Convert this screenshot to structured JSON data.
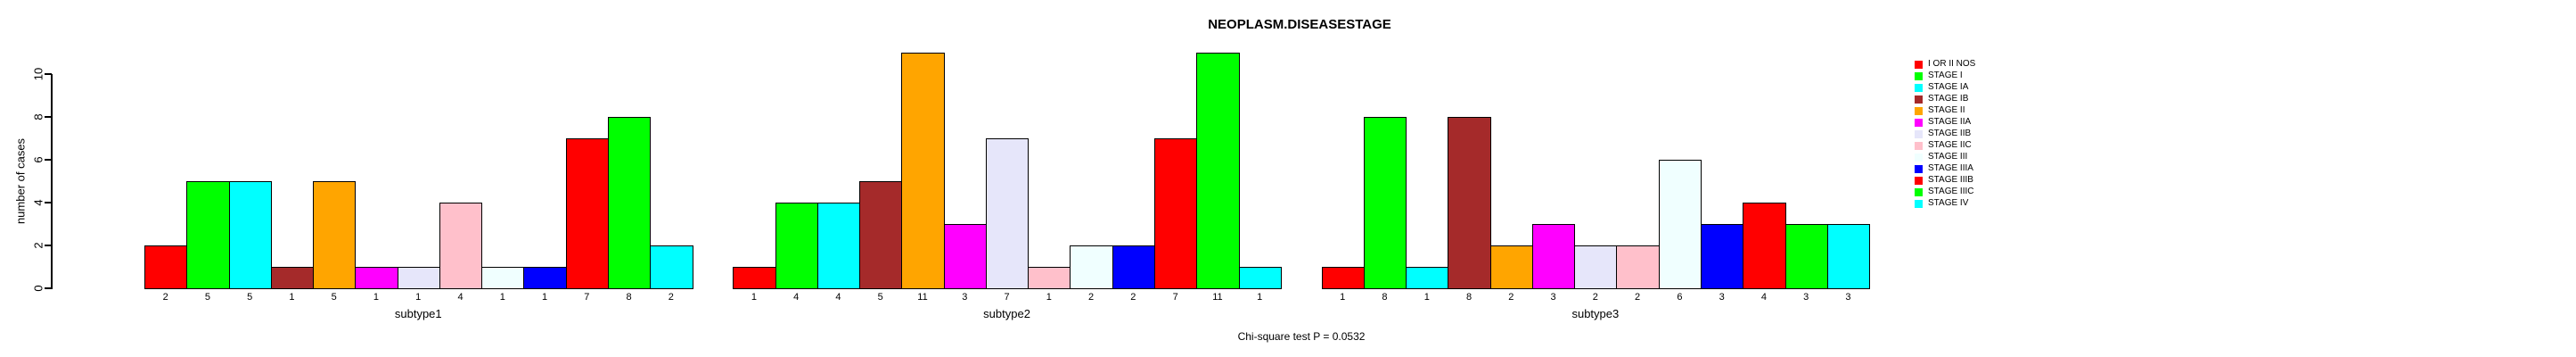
{
  "chart_data": {
    "type": "bar",
    "title": "NEOPLASM.DISEASESTAGE",
    "ylabel": "number of cases",
    "xlabel": "",
    "annotation": "Chi-square test P = 0.0532",
    "categories": [
      "subtype1",
      "subtype2",
      "subtype3"
    ],
    "series": [
      {
        "name": "I OR II NOS",
        "color": "#FF0000",
        "values": [
          2,
          1,
          1
        ]
      },
      {
        "name": "STAGE I",
        "color": "#00FF00",
        "values": [
          5,
          4,
          8
        ]
      },
      {
        "name": "STAGE IA",
        "color": "#00FFFF",
        "values": [
          5,
          4,
          1
        ]
      },
      {
        "name": "STAGE IB",
        "color": "#A52A2A",
        "values": [
          1,
          5,
          8
        ]
      },
      {
        "name": "STAGE II",
        "color": "#FFA500",
        "values": [
          5,
          11,
          2
        ]
      },
      {
        "name": "STAGE IIA",
        "color": "#FF00FF",
        "values": [
          1,
          3,
          3
        ]
      },
      {
        "name": "STAGE IIB",
        "color": "#E6E6FA",
        "values": [
          1,
          7,
          2
        ]
      },
      {
        "name": "STAGE IIC",
        "color": "#FFC0CB",
        "values": [
          4,
          1,
          2
        ]
      },
      {
        "name": "STAGE III",
        "color": "#F0FFFF",
        "values": [
          1,
          2,
          6
        ]
      },
      {
        "name": "STAGE IIIA",
        "color": "#0000FF",
        "values": [
          1,
          2,
          3
        ]
      },
      {
        "name": "STAGE IIIB",
        "color": "#FF0000",
        "values": [
          7,
          7,
          4
        ]
      },
      {
        "name": "STAGE IIIC",
        "color": "#00FF00",
        "values": [
          8,
          11,
          3
        ]
      },
      {
        "name": "STAGE IV",
        "color": "#00FFFF",
        "values": [
          2,
          1,
          3
        ]
      }
    ],
    "yticks": [
      0,
      2,
      4,
      6,
      8,
      10
    ],
    "ylim": [
      0,
      11
    ],
    "bar_value_labels_shown": true,
    "grid": false,
    "legend_position": "right"
  }
}
